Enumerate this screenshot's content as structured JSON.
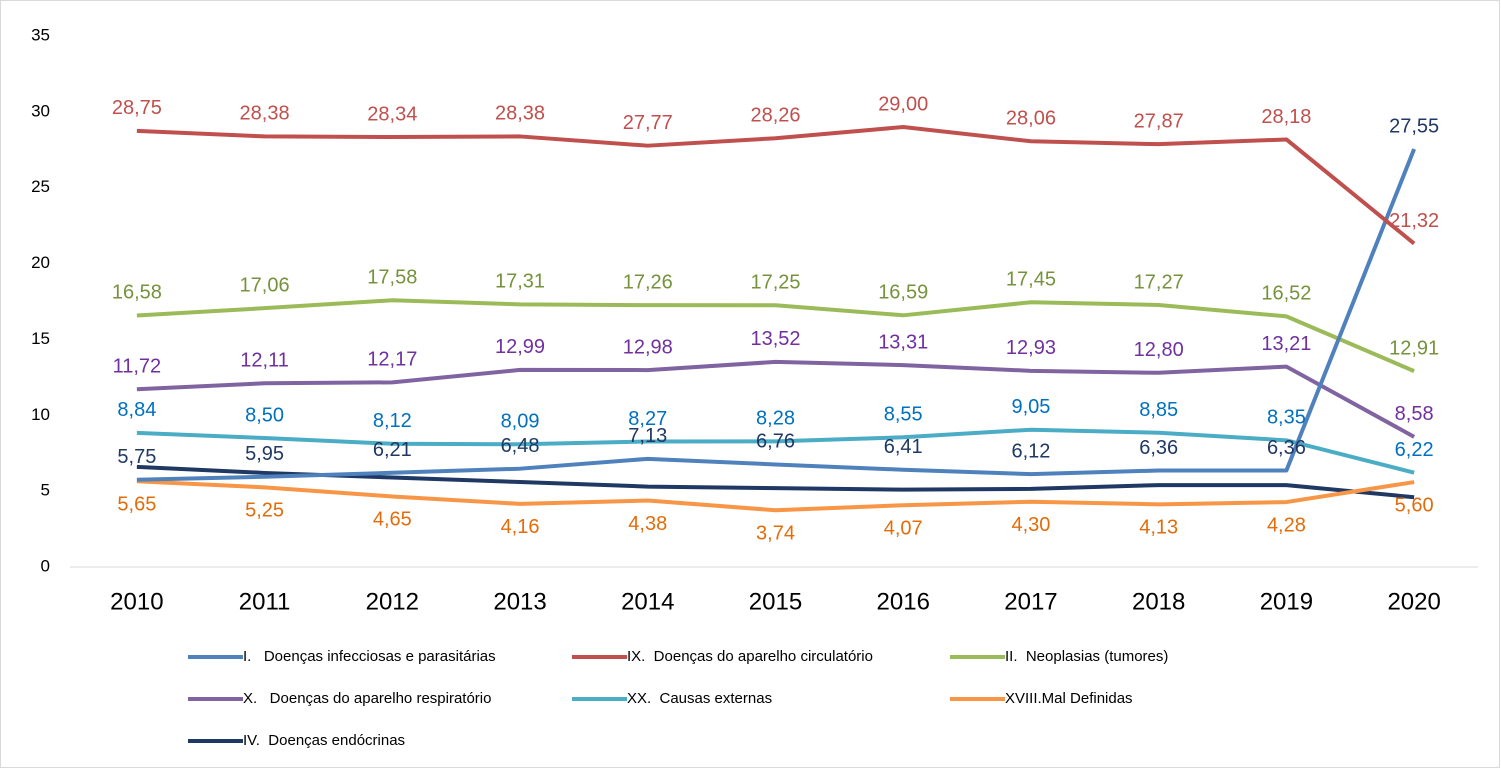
{
  "chart_data": {
    "type": "line",
    "categories": [
      "2010",
      "2011",
      "2012",
      "2013",
      "2014",
      "2015",
      "2016",
      "2017",
      "2018",
      "2019",
      "2020"
    ],
    "ylim": [
      0,
      35
    ],
    "yticks": [
      0,
      5,
      10,
      15,
      20,
      25,
      30,
      35
    ],
    "grid": false,
    "series": [
      {
        "name": "I.   Doenças infecciosas e parasitárias",
        "color": "#4f81bd",
        "label_color": "#1f3864",
        "values": [
          5.75,
          5.95,
          6.21,
          6.48,
          7.13,
          6.76,
          6.41,
          6.12,
          6.36,
          6.36,
          27.55
        ],
        "value_labels": [
          "5,75",
          "5,95",
          "6,21",
          "6,48",
          "7,13",
          "6,76",
          "6,41",
          "6,12",
          "6,36",
          "6,36",
          "27,55"
        ]
      },
      {
        "name": "IX.  Doenças do aparelho circulatório",
        "color": "#c0504d",
        "label_color": "#c0504d",
        "values": [
          28.75,
          28.38,
          28.34,
          28.38,
          27.77,
          28.26,
          29.0,
          28.06,
          27.87,
          28.18,
          21.32
        ],
        "value_labels": [
          "28,75",
          "28,38",
          "28,34",
          "28,38",
          "27,77",
          "28,26",
          "29,00",
          "28,06",
          "27,87",
          "28,18",
          "21,32"
        ]
      },
      {
        "name": "II.  Neoplasias (tumores)",
        "color": "#9bbb59",
        "label_color": "#76923c",
        "values": [
          16.58,
          17.06,
          17.58,
          17.31,
          17.26,
          17.25,
          16.59,
          17.45,
          17.27,
          16.52,
          12.91
        ],
        "value_labels": [
          "16,58",
          "17,06",
          "17,58",
          "17,31",
          "17,26",
          "17,25",
          "16,59",
          "17,45",
          "17,27",
          "16,52",
          "12,91"
        ]
      },
      {
        "name": "X.   Doenças do aparelho respiratório",
        "color": "#8064a2",
        "label_color": "#7030a0",
        "values": [
          11.72,
          12.11,
          12.17,
          12.99,
          12.98,
          13.52,
          13.31,
          12.93,
          12.8,
          13.21,
          8.58
        ],
        "value_labels": [
          "11,72",
          "12,11",
          "12,17",
          "12,99",
          "12,98",
          "13,52",
          "13,31",
          "12,93",
          "12,80",
          "13,21",
          "8,58"
        ]
      },
      {
        "name": "XX.  Causas externas",
        "color": "#4bacc6",
        "label_color": "#0070c0",
        "values": [
          8.84,
          8.5,
          8.12,
          8.09,
          8.27,
          8.28,
          8.55,
          9.05,
          8.85,
          8.35,
          6.22
        ],
        "value_labels": [
          "8,84",
          "8,50",
          "8,12",
          "8,09",
          "8,27",
          "8,28",
          "8,55",
          "9,05",
          "8,85",
          "8,35",
          "6,22"
        ]
      },
      {
        "name": "XVIII.Mal Definidas",
        "color": "#f79646",
        "label_color": "#e36c09",
        "values": [
          5.65,
          5.25,
          4.65,
          4.16,
          4.38,
          3.74,
          4.07,
          4.3,
          4.13,
          4.28,
          5.6
        ],
        "value_labels": [
          "5,65",
          "5,25",
          "4,65",
          "4,16",
          "4,38",
          "3,74",
          "4,07",
          "4,30",
          "4,13",
          "4,28",
          "5,60"
        ]
      },
      {
        "name": "IV.  Doenças endócrinas",
        "color": "#1f3864",
        "values": [
          6.6,
          6.2,
          5.9,
          5.6,
          5.3,
          5.2,
          5.1,
          5.15,
          5.4,
          5.4,
          4.6
        ]
      }
    ]
  }
}
